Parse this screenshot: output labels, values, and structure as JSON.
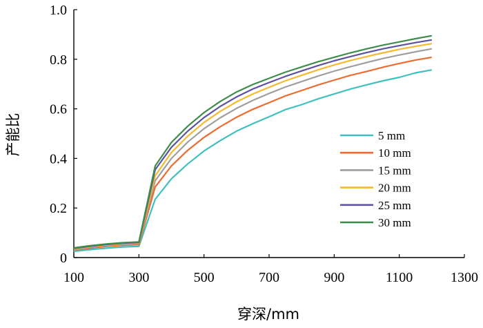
{
  "chart_data": {
    "type": "line",
    "title": "",
    "xlabel": "穿深/mm",
    "ylabel": "产能比",
    "xlim": [
      100,
      1300
    ],
    "ylim": [
      0,
      1.0
    ],
    "xticks": [
      100,
      300,
      500,
      700,
      900,
      1100,
      1300
    ],
    "yticks": [
      0,
      0.2,
      0.4,
      0.6,
      0.8,
      1.0
    ],
    "ytick_labels": [
      "0",
      "0.2",
      "0.4",
      "0.6",
      "0.8",
      "1.0"
    ],
    "grid": false,
    "legend_position": "right",
    "x": [
      100,
      150,
      200,
      250,
      300,
      350,
      400,
      450,
      500,
      550,
      600,
      650,
      700,
      750,
      800,
      850,
      900,
      950,
      1000,
      1050,
      1100,
      1150,
      1200
    ],
    "series": [
      {
        "name": "5 mm",
        "color": "#3fbfbf",
        "values": [
          0.025,
          0.032,
          0.038,
          0.043,
          0.045,
          0.235,
          0.318,
          0.378,
          0.43,
          0.472,
          0.51,
          0.54,
          0.568,
          0.597,
          0.617,
          0.64,
          0.66,
          0.68,
          0.697,
          0.713,
          0.727,
          0.745,
          0.757
        ]
      },
      {
        "name": "10 mm",
        "color": "#ee6a2e",
        "values": [
          0.03,
          0.038,
          0.045,
          0.05,
          0.052,
          0.285,
          0.37,
          0.433,
          0.485,
          0.528,
          0.566,
          0.598,
          0.625,
          0.652,
          0.674,
          0.696,
          0.716,
          0.735,
          0.751,
          0.768,
          0.783,
          0.797,
          0.808
        ]
      },
      {
        "name": "15 mm",
        "color": "#9e9e9e",
        "values": [
          0.032,
          0.041,
          0.048,
          0.053,
          0.056,
          0.31,
          0.4,
          0.466,
          0.52,
          0.564,
          0.602,
          0.634,
          0.662,
          0.688,
          0.71,
          0.732,
          0.752,
          0.77,
          0.787,
          0.803,
          0.817,
          0.83,
          0.842
        ]
      },
      {
        "name": "20 mm",
        "color": "#f5b82e",
        "values": [
          0.035,
          0.044,
          0.051,
          0.056,
          0.059,
          0.33,
          0.424,
          0.49,
          0.545,
          0.59,
          0.628,
          0.66,
          0.687,
          0.713,
          0.735,
          0.757,
          0.777,
          0.795,
          0.811,
          0.826,
          0.84,
          0.852,
          0.863
        ]
      },
      {
        "name": "25 mm",
        "color": "#5b52a0",
        "values": [
          0.037,
          0.046,
          0.053,
          0.058,
          0.061,
          0.355,
          0.445,
          0.51,
          0.565,
          0.61,
          0.648,
          0.68,
          0.706,
          0.731,
          0.753,
          0.774,
          0.794,
          0.811,
          0.827,
          0.842,
          0.855,
          0.867,
          0.878
        ]
      },
      {
        "name": "30 mm",
        "color": "#3d8c4a",
        "values": [
          0.039,
          0.048,
          0.055,
          0.06,
          0.063,
          0.37,
          0.465,
          0.53,
          0.585,
          0.63,
          0.668,
          0.698,
          0.723,
          0.748,
          0.769,
          0.79,
          0.808,
          0.826,
          0.842,
          0.857,
          0.87,
          0.883,
          0.895
        ]
      }
    ]
  }
}
